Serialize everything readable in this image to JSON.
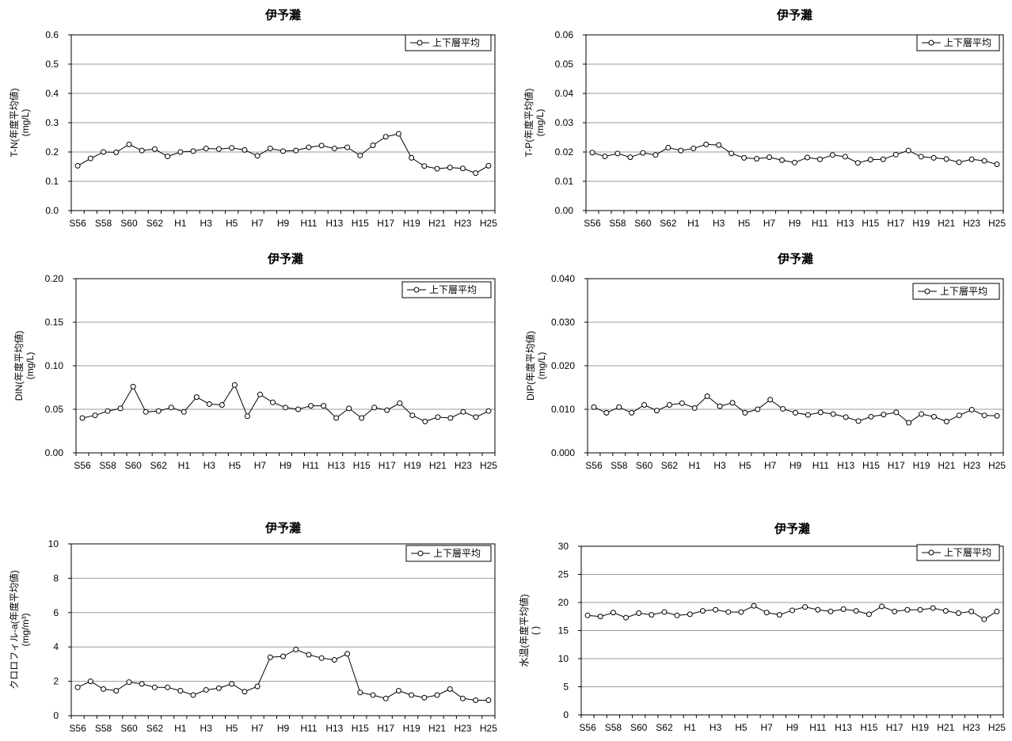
{
  "chart_data": [
    {
      "type": "line",
      "title": "伊予灘",
      "ylabel": "T-N(年度平均値)",
      "ylabel_unit": "(mg/L)",
      "ylim": [
        0,
        0.6
      ],
      "yticks": [
        "0.0",
        "0.1",
        "0.2",
        "0.3",
        "0.4",
        "0.5",
        "0.6"
      ],
      "yticks_values": [
        0,
        0.1,
        0.2,
        0.3,
        0.4,
        0.5,
        0.6
      ],
      "categories": [
        "S56",
        "S57",
        "S58",
        "S59",
        "S60",
        "S61",
        "S62",
        "S63",
        "H1",
        "H2",
        "H3",
        "H4",
        "H5",
        "H6",
        "H7",
        "H8",
        "H9",
        "H10",
        "H11",
        "H12",
        "H13",
        "H14",
        "H15",
        "H16",
        "H17",
        "H18",
        "H19",
        "H20",
        "H21",
        "H22",
        "H23",
        "H24",
        "H25"
      ],
      "xtick_labels": [
        "S56",
        "S58",
        "S60",
        "S62",
        "H1",
        "H3",
        "H5",
        "H7",
        "H9",
        "H11",
        "H13",
        "H15",
        "H17",
        "H19",
        "H21",
        "H23",
        "H25"
      ],
      "series": [
        {
          "name": "上下層平均",
          "values": [
            0.153,
            0.178,
            0.2,
            0.199,
            0.226,
            0.205,
            0.21,
            0.185,
            0.2,
            0.203,
            0.212,
            0.21,
            0.214,
            0.207,
            0.187,
            0.212,
            0.203,
            0.205,
            0.216,
            0.222,
            0.212,
            0.216,
            0.188,
            0.223,
            0.252,
            0.262,
            0.18,
            0.152,
            0.143,
            0.147,
            0.144,
            0.128,
            0.153
          ]
        }
      ],
      "legend": "top-right",
      "grid": true
    },
    {
      "type": "line",
      "title": "伊予灘",
      "ylabel": "T-P(年度平均値)",
      "ylabel_unit": "(mg/L)",
      "ylim": [
        0,
        0.06
      ],
      "yticks": [
        "0.00",
        "0.01",
        "0.02",
        "0.03",
        "0.04",
        "0.05",
        "0.06"
      ],
      "yticks_values": [
        0,
        0.01,
        0.02,
        0.03,
        0.04,
        0.05,
        0.06
      ],
      "categories": [
        "S56",
        "S57",
        "S58",
        "S59",
        "S60",
        "S61",
        "S62",
        "S63",
        "H1",
        "H2",
        "H3",
        "H4",
        "H5",
        "H6",
        "H7",
        "H8",
        "H9",
        "H10",
        "H11",
        "H12",
        "H13",
        "H14",
        "H15",
        "H16",
        "H17",
        "H18",
        "H19",
        "H20",
        "H21",
        "H22",
        "H23",
        "H24",
        "H25"
      ],
      "xtick_labels": [
        "S56",
        "S58",
        "S60",
        "S62",
        "H1",
        "H3",
        "H5",
        "H7",
        "H9",
        "H11",
        "H13",
        "H15",
        "H17",
        "H19",
        "H21",
        "H23",
        "H25"
      ],
      "series": [
        {
          "name": "上下層平均",
          "values": [
            0.0198,
            0.0185,
            0.0195,
            0.0182,
            0.0197,
            0.019,
            0.0215,
            0.0205,
            0.0212,
            0.0226,
            0.0224,
            0.0195,
            0.018,
            0.0177,
            0.0182,
            0.0172,
            0.0164,
            0.0181,
            0.0175,
            0.019,
            0.0184,
            0.0163,
            0.0174,
            0.0175,
            0.0191,
            0.0205,
            0.0184,
            0.018,
            0.0176,
            0.0165,
            0.0175,
            0.017,
            0.0158
          ]
        }
      ],
      "legend": "top-right",
      "grid": true
    },
    {
      "type": "line",
      "title": "伊予灘",
      "ylabel": "DIN(年度平均値)",
      "ylabel_unit": "(mg/L)",
      "ylim": [
        0,
        0.2
      ],
      "yticks": [
        "0.00",
        "0.05",
        "0.10",
        "0.15",
        "0.20"
      ],
      "yticks_values": [
        0,
        0.05,
        0.1,
        0.15,
        0.2
      ],
      "categories": [
        "S56",
        "S57",
        "S58",
        "S59",
        "S60",
        "S61",
        "S62",
        "S63",
        "H1",
        "H2",
        "H3",
        "H4",
        "H5",
        "H6",
        "H7",
        "H8",
        "H9",
        "H10",
        "H11",
        "H12",
        "H13",
        "H14",
        "H15",
        "H16",
        "H17",
        "H18",
        "H19",
        "H20",
        "H21",
        "H22",
        "H23",
        "H24",
        "H25"
      ],
      "xtick_labels": [
        "S56",
        "S58",
        "S60",
        "S62",
        "H1",
        "H3",
        "H5",
        "H7",
        "H9",
        "H11",
        "H13",
        "H15",
        "H17",
        "H19",
        "H21",
        "H23",
        "H25"
      ],
      "series": [
        {
          "name": "上下層平均",
          "values": [
            0.04,
            0.043,
            0.048,
            0.051,
            0.076,
            0.047,
            0.048,
            0.052,
            0.047,
            0.064,
            0.056,
            0.055,
            0.078,
            0.042,
            0.067,
            0.058,
            0.052,
            0.05,
            0.054,
            0.054,
            0.04,
            0.051,
            0.04,
            0.052,
            0.049,
            0.057,
            0.043,
            0.036,
            0.041,
            0.04,
            0.047,
            0.041,
            0.048
          ]
        }
      ],
      "legend": "top-right",
      "grid": true
    },
    {
      "type": "line",
      "title": "伊予灘",
      "ylabel": "DIP(年度平均値)",
      "ylabel_unit": "(mg/L)",
      "ylim": [
        0,
        0.04
      ],
      "yticks": [
        "0.000",
        "0.010",
        "0.020",
        "0.030",
        "0.040"
      ],
      "yticks_values": [
        0,
        0.01,
        0.02,
        0.03,
        0.04
      ],
      "categories": [
        "S56",
        "S57",
        "S58",
        "S59",
        "S60",
        "S61",
        "S62",
        "S63",
        "H1",
        "H2",
        "H3",
        "H4",
        "H5",
        "H6",
        "H7",
        "H8",
        "H9",
        "H10",
        "H11",
        "H12",
        "H13",
        "H14",
        "H15",
        "H16",
        "H17",
        "H18",
        "H19",
        "H20",
        "H21",
        "H22",
        "H23",
        "H24",
        "H25"
      ],
      "xtick_labels": [
        "S56",
        "S58",
        "S60",
        "S62",
        "H1",
        "H3",
        "H5",
        "H7",
        "H9",
        "H11",
        "H13",
        "H15",
        "H17",
        "H19",
        "H21",
        "H23",
        "H25"
      ],
      "series": [
        {
          "name": "上下層平均",
          "values": [
            0.0105,
            0.0092,
            0.0105,
            0.0092,
            0.011,
            0.0097,
            0.011,
            0.0114,
            0.0103,
            0.013,
            0.0107,
            0.0115,
            0.0092,
            0.01,
            0.0122,
            0.0101,
            0.0092,
            0.0087,
            0.0093,
            0.0089,
            0.0082,
            0.0073,
            0.0083,
            0.0088,
            0.0093,
            0.0069,
            0.0089,
            0.0083,
            0.0072,
            0.0086,
            0.0099,
            0.0086,
            0.0085
          ]
        }
      ],
      "legend": "top-right",
      "grid": true
    },
    {
      "type": "line",
      "title": "伊予灘",
      "ylabel": "クロロフィル-a(年度平均値)",
      "ylabel_unit": "(mg/m³)",
      "ylim": [
        0,
        10
      ],
      "yticks": [
        "0",
        "2",
        "4",
        "6",
        "8",
        "10"
      ],
      "yticks_values": [
        0,
        2,
        4,
        6,
        8,
        10
      ],
      "categories": [
        "S56",
        "S57",
        "S58",
        "S59",
        "S60",
        "S61",
        "S62",
        "S63",
        "H1",
        "H2",
        "H3",
        "H4",
        "H5",
        "H6",
        "H7",
        "H8",
        "H9",
        "H10",
        "H11",
        "H12",
        "H13",
        "H14",
        "H15",
        "H16",
        "H17",
        "H18",
        "H19",
        "H20",
        "H21",
        "H22",
        "H23",
        "H24",
        "H25"
      ],
      "xtick_labels": [
        "S56",
        "S58",
        "S60",
        "S62",
        "H1",
        "H3",
        "H5",
        "H7",
        "H9",
        "H11",
        "H13",
        "H15",
        "H17",
        "H19",
        "H21",
        "H23",
        "H25"
      ],
      "series": [
        {
          "name": "上下層平均",
          "values": [
            1.65,
            2.0,
            1.55,
            1.45,
            1.95,
            1.85,
            1.65,
            1.65,
            1.45,
            1.2,
            1.5,
            1.6,
            1.85,
            1.4,
            1.7,
            3.4,
            3.45,
            3.85,
            3.55,
            3.35,
            3.25,
            3.6,
            1.35,
            1.2,
            1.0,
            1.45,
            1.2,
            1.05,
            1.2,
            1.55,
            1.0,
            0.9,
            0.9
          ]
        }
      ],
      "legend": "top-right",
      "grid": true
    },
    {
      "type": "line",
      "title": "伊予灘",
      "ylabel": "水温(年度平均値)",
      "ylabel_unit": "( )",
      "ylim": [
        0,
        30
      ],
      "yticks": [
        "0",
        "5",
        "10",
        "15",
        "20",
        "25",
        "30"
      ],
      "yticks_values": [
        0,
        5,
        10,
        15,
        20,
        25,
        30
      ],
      "categories": [
        "S56",
        "S57",
        "S58",
        "S59",
        "S60",
        "S61",
        "S62",
        "S63",
        "H1",
        "H2",
        "H3",
        "H4",
        "H5",
        "H6",
        "H7",
        "H8",
        "H9",
        "H10",
        "H11",
        "H12",
        "H13",
        "H14",
        "H15",
        "H16",
        "H17",
        "H18",
        "H19",
        "H20",
        "H21",
        "H22",
        "H23",
        "H24",
        "H25"
      ],
      "xtick_labels": [
        "S56",
        "S58",
        "S60",
        "S62",
        "H1",
        "H3",
        "H5",
        "H7",
        "H9",
        "H11",
        "H13",
        "H15",
        "H17",
        "H19",
        "H21",
        "H23",
        "H25"
      ],
      "series": [
        {
          "name": "上下層平均",
          "values": [
            17.7,
            17.5,
            18.2,
            17.3,
            18.1,
            17.8,
            18.3,
            17.7,
            17.9,
            18.5,
            18.7,
            18.3,
            18.3,
            19.4,
            18.2,
            17.8,
            18.6,
            19.2,
            18.7,
            18.4,
            18.8,
            18.5,
            17.9,
            19.3,
            18.4,
            18.7,
            18.7,
            19.0,
            18.5,
            18.1,
            18.4,
            17.0,
            18.4
          ]
        }
      ],
      "legend": "top-right",
      "grid": true
    }
  ]
}
